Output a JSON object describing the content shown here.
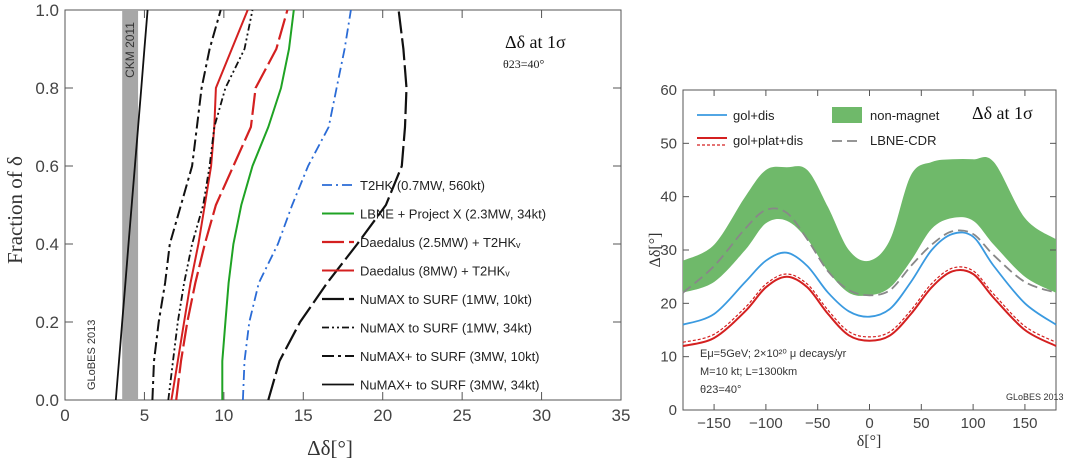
{
  "chart_data": [
    {
      "type": "line",
      "xlabel": "Δδ[°]",
      "ylabel": "Fraction of δ",
      "xlim": [
        0,
        35
      ],
      "ylim": [
        0,
        1
      ],
      "xticks": [
        "0",
        "5",
        "10",
        "15",
        "20",
        "25",
        "30",
        "35"
      ],
      "yticks": [
        "0.0",
        "0.2",
        "0.4",
        "0.6",
        "0.8",
        "1.0"
      ],
      "annotation_title": "Δδ at 1σ",
      "annotation_sub": "θ23=40°",
      "band_label": "CKM 2011",
      "band_range": [
        3.6,
        4.6
      ],
      "watermark": "GLoBES 2013",
      "legend_position": "right",
      "series": [
        {
          "name": "T2HK (0.7MW, 560kt)",
          "color": "#2a6bd6",
          "dash": "10,4,2,4",
          "width": 1.8,
          "points": [
            [
              11.2,
              0
            ],
            [
              11.3,
              0.1
            ],
            [
              11.6,
              0.2
            ],
            [
              12.2,
              0.3
            ],
            [
              13.4,
              0.4
            ],
            [
              14.3,
              0.5
            ],
            [
              15.3,
              0.6
            ],
            [
              16.6,
              0.7
            ],
            [
              17.1,
              0.8
            ],
            [
              17.6,
              0.9
            ],
            [
              18.0,
              1.0
            ]
          ]
        },
        {
          "name": "LBNE + Project X (2.3MW, 34kt)",
          "color": "#1fa324",
          "dash": "",
          "width": 2,
          "points": [
            [
              9.9,
              0
            ],
            [
              9.9,
              0.1
            ],
            [
              10.1,
              0.2
            ],
            [
              10.3,
              0.3
            ],
            [
              10.6,
              0.4
            ],
            [
              11.1,
              0.5
            ],
            [
              11.8,
              0.6
            ],
            [
              12.8,
              0.7
            ],
            [
              13.6,
              0.8
            ],
            [
              14.1,
              0.9
            ],
            [
              14.4,
              1.0
            ]
          ]
        },
        {
          "name": "Daedalus (2.5MW) + T2HKᵥ",
          "color": "#d42020",
          "dash": "22,5",
          "width": 2.2,
          "points": [
            [
              7.0,
              0
            ],
            [
              7.3,
              0.1
            ],
            [
              7.7,
              0.2
            ],
            [
              8.2,
              0.3
            ],
            [
              8.8,
              0.4
            ],
            [
              9.5,
              0.5
            ],
            [
              10.6,
              0.6
            ],
            [
              11.7,
              0.7
            ],
            [
              12.0,
              0.8
            ],
            [
              13.3,
              0.9
            ],
            [
              14.0,
              1.0
            ]
          ]
        },
        {
          "name": "Daedalus (8MW) + T2HKᵥ",
          "color": "#d42020",
          "dash": "",
          "width": 2,
          "points": [
            [
              6.7,
              0
            ],
            [
              7.1,
              0.1
            ],
            [
              7.5,
              0.2
            ],
            [
              7.9,
              0.3
            ],
            [
              8.4,
              0.4
            ],
            [
              8.8,
              0.5
            ],
            [
              9.2,
              0.6
            ],
            [
              9.4,
              0.7
            ],
            [
              9.5,
              0.8
            ],
            [
              10.5,
              0.9
            ],
            [
              11.5,
              1.0
            ]
          ]
        },
        {
          "name": "NuMAX to SURF (1MW, 10kt)",
          "color": "#111111",
          "dash": "22,5",
          "width": 2.2,
          "points": [
            [
              12.8,
              0
            ],
            [
              13.5,
              0.1
            ],
            [
              14.8,
              0.2
            ],
            [
              16.5,
              0.3
            ],
            [
              18.4,
              0.4
            ],
            [
              20.2,
              0.5
            ],
            [
              21.2,
              0.6
            ],
            [
              21.4,
              0.7
            ],
            [
              21.5,
              0.8
            ],
            [
              21.3,
              0.9
            ],
            [
              21.0,
              1.0
            ]
          ]
        },
        {
          "name": "NuMAX to SURF (1MW, 34kt)",
          "color": "#111111",
          "dash": "7,3,2,3,2,3",
          "width": 1.8,
          "points": [
            [
              6.5,
              0
            ],
            [
              6.8,
              0.1
            ],
            [
              7.1,
              0.2
            ],
            [
              7.5,
              0.3
            ],
            [
              8.0,
              0.4
            ],
            [
              8.7,
              0.5
            ],
            [
              9.1,
              0.6
            ],
            [
              9.4,
              0.7
            ],
            [
              10.1,
              0.8
            ],
            [
              11.3,
              0.9
            ],
            [
              11.8,
              1.0
            ]
          ]
        },
        {
          "name": "NuMAX+ to SURF (3MW, 10kt)",
          "color": "#111111",
          "dash": "12,4,3,4",
          "width": 2,
          "points": [
            [
              5.5,
              0
            ],
            [
              5.6,
              0.1
            ],
            [
              5.9,
              0.2
            ],
            [
              6.3,
              0.3
            ],
            [
              6.6,
              0.4
            ],
            [
              7.3,
              0.5
            ],
            [
              8.0,
              0.6
            ],
            [
              8.3,
              0.7
            ],
            [
              8.6,
              0.8
            ],
            [
              9.1,
              0.9
            ],
            [
              9.8,
              1.0
            ]
          ]
        },
        {
          "name": "NuMAX+ to SURF (3MW, 34kt)",
          "color": "#111111",
          "dash": "",
          "width": 1.8,
          "points": [
            [
              3.2,
              0
            ],
            [
              3.4,
              0.1
            ],
            [
              3.6,
              0.2
            ],
            [
              3.8,
              0.3
            ],
            [
              4.0,
              0.4
            ],
            [
              4.2,
              0.5
            ],
            [
              4.4,
              0.6
            ],
            [
              4.6,
              0.7
            ],
            [
              4.8,
              0.8
            ],
            [
              5.0,
              0.9
            ],
            [
              5.2,
              1.0
            ]
          ]
        }
      ]
    },
    {
      "type": "line",
      "xlabel": "δ[°]",
      "ylabel": "Δδ[°]",
      "xlim": [
        -180,
        180
      ],
      "ylim": [
        0,
        60
      ],
      "xticks": [
        "-150",
        "-100",
        "-50",
        "0",
        "50",
        "100",
        "150"
      ],
      "yticks": [
        "0",
        "10",
        "20",
        "30",
        "40",
        "50",
        "60"
      ],
      "annotation_title": "Δδ at 1σ",
      "watermark": "GLoBES 2013",
      "notes": [
        "Eμ=5GeV; 2×10²⁰ μ decays/yr",
        "M=10 kt; L=1300km",
        "θ23=40°"
      ],
      "legend_position": "top",
      "band": {
        "name": "non-magnet",
        "color": "#6fb96a",
        "x": [
          -180,
          -150,
          -120,
          -100,
          -80,
          -60,
          -40,
          -20,
          0,
          20,
          40,
          60,
          80,
          100,
          120,
          150,
          180
        ],
        "lower": [
          22,
          24,
          30,
          35,
          35.5,
          32,
          26,
          22,
          21.5,
          23,
          28,
          34,
          36,
          35.5,
          31,
          25,
          22
        ],
        "upper": [
          28,
          31,
          40,
          45,
          45.5,
          45,
          38,
          30,
          28,
          32,
          44,
          46.5,
          47,
          47,
          46.5,
          36,
          32
        ]
      },
      "series": [
        {
          "name": "gol+dis",
          "color": "#3a9ae0",
          "dash": "",
          "width": 1.8,
          "x": [
            -180,
            -150,
            -120,
            -100,
            -80,
            -60,
            -40,
            -20,
            0,
            20,
            40,
            60,
            80,
            100,
            120,
            150,
            180
          ],
          "y": [
            16,
            18,
            24,
            28,
            29.5,
            27,
            22,
            18.5,
            17.5,
            19,
            24,
            30,
            33,
            32.5,
            27,
            20,
            16
          ]
        },
        {
          "name": "gol+plat+dis",
          "color": "#d42020",
          "dash": "",
          "width": 2,
          "x": [
            -180,
            -150,
            -120,
            -100,
            -80,
            -60,
            -40,
            -20,
            0,
            20,
            40,
            60,
            80,
            100,
            120,
            150,
            180
          ],
          "y": [
            12,
            13.5,
            18.5,
            23,
            25,
            23,
            18,
            14,
            13,
            14,
            18,
            23,
            26,
            25.5,
            21,
            15,
            12
          ]
        },
        {
          "name": "",
          "color": "#d42020",
          "dash": "3,2",
          "width": 1.2,
          "x": [
            -180,
            -150,
            -120,
            -100,
            -80,
            -60,
            -40,
            -20,
            0,
            20,
            40,
            60,
            80,
            100,
            120,
            150,
            180
          ],
          "y": [
            12.7,
            14.2,
            19.2,
            23.6,
            25.5,
            23.6,
            18.7,
            14.7,
            13.7,
            14.7,
            18.7,
            23.7,
            26.6,
            26.1,
            21.7,
            15.7,
            12.7
          ]
        },
        {
          "name": "LBNE-CDR",
          "color": "#888888",
          "dash": "10,5",
          "width": 1.8,
          "x": [
            -180,
            -150,
            -120,
            -100,
            -80,
            -60,
            -40,
            -20,
            0,
            20,
            40,
            60,
            80,
            100,
            120,
            150,
            180
          ],
          "y": [
            22,
            27,
            34,
            37.5,
            37,
            32,
            26,
            22.5,
            21.5,
            22.5,
            27,
            31,
            33.5,
            33,
            29,
            24,
            22
          ]
        }
      ]
    }
  ]
}
